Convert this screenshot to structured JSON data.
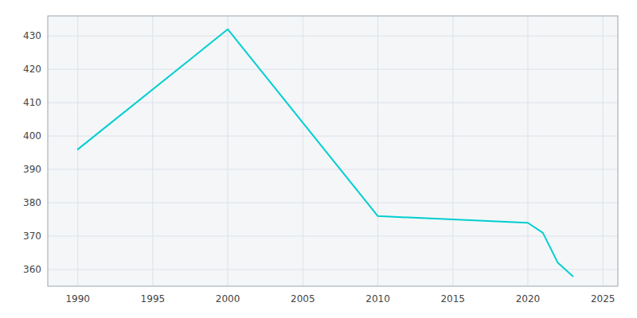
{
  "chart_data": {
    "type": "line",
    "x": [
      1990,
      2000,
      2010,
      2020,
      2021,
      2022,
      2023
    ],
    "values": [
      396,
      432,
      376,
      374,
      371,
      362,
      358
    ],
    "color": "#00CED1",
    "xlim": [
      1988,
      2026
    ],
    "ylim": [
      355,
      436
    ],
    "xticks": [
      1990,
      1995,
      2000,
      2005,
      2010,
      2015,
      2020,
      2025
    ],
    "yticks": [
      360,
      370,
      380,
      390,
      400,
      410,
      420,
      430
    ],
    "grid": true
  }
}
